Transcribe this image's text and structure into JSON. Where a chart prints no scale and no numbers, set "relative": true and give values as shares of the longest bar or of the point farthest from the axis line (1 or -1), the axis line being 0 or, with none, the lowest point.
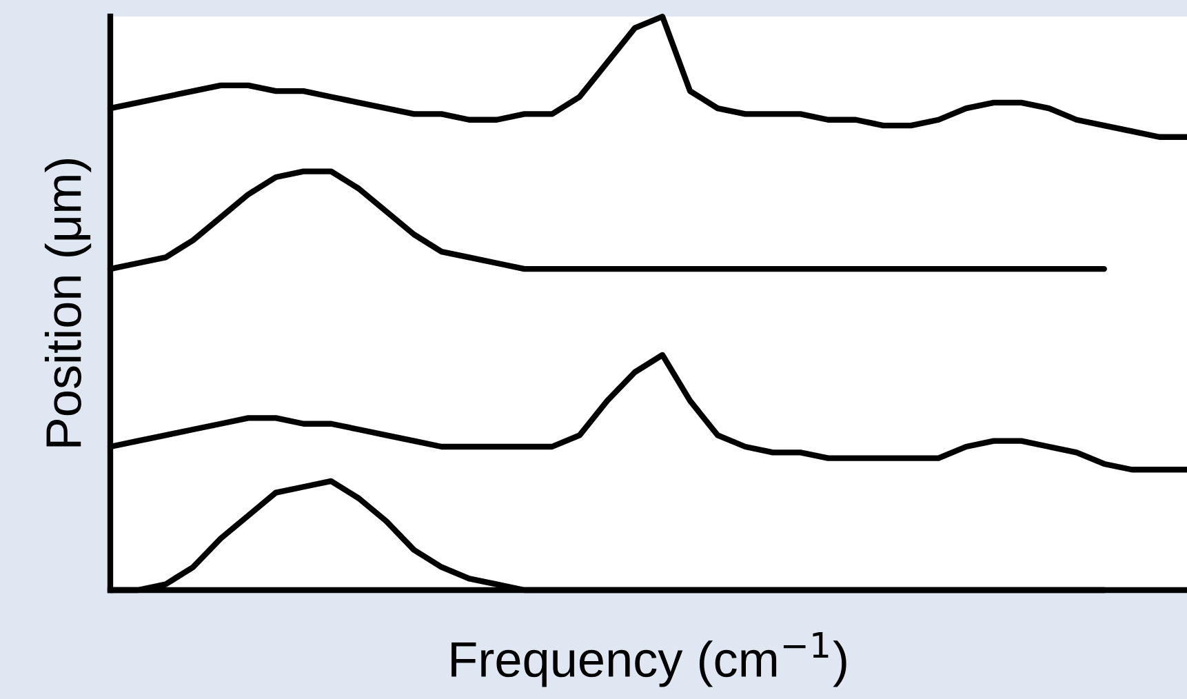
{
  "chart_data": {
    "type": "line",
    "relative": true,
    "xlabel": "Frequency (cm$^{−1}$)",
    "ylabel": "Position (μm)",
    "grid": false,
    "legend": false,
    "tick_labels": false,
    "line_style": "solid",
    "categories": [
      null,
      null,
      null,
      null,
      null,
      null,
      null,
      null,
      null,
      null,
      null,
      null,
      null,
      null,
      null,
      null,
      null,
      null,
      null,
      null,
      null,
      null,
      null,
      null,
      null,
      null,
      null,
      null,
      null,
      null,
      null,
      null,
      null,
      null,
      null,
      null,
      null,
      null,
      null,
      null
    ],
    "series": [
      {
        "color": "#000000",
        "values": [
          0.84,
          0.85,
          0.86,
          0.87,
          0.88,
          0.88,
          0.87,
          0.87,
          0.86,
          0.85,
          0.84,
          0.83,
          0.83,
          0.82,
          0.82,
          0.83,
          0.83,
          0.86,
          0.92,
          0.98,
          1.0,
          0.87,
          0.84,
          0.83,
          0.83,
          0.83,
          0.82,
          0.82,
          0.81,
          0.81,
          0.82,
          0.84,
          0.85,
          0.85,
          0.84,
          0.82,
          0.81,
          0.8,
          0.79,
          0.79
        ]
      },
      {
        "color": "#000000",
        "values": [
          0.56,
          0.57,
          0.58,
          0.61,
          0.65,
          0.69,
          0.72,
          0.73,
          0.73,
          0.7,
          0.66,
          0.62,
          0.59,
          0.58,
          0.57,
          0.56,
          0.56,
          0.56,
          0.56,
          0.56,
          0.56,
          0.56,
          0.56,
          0.56,
          0.56,
          0.56,
          0.56,
          0.56,
          0.56,
          0.56,
          0.56,
          0.56,
          0.56,
          0.56,
          0.56,
          0.56,
          0.56,
          null,
          null,
          null
        ]
      },
      {
        "color": "#000000",
        "values": [
          0.25,
          0.26,
          0.27,
          0.28,
          0.29,
          0.3,
          0.3,
          0.29,
          0.29,
          0.28,
          0.27,
          0.26,
          0.25,
          0.25,
          0.25,
          0.25,
          0.25,
          0.27,
          0.33,
          0.38,
          0.41,
          0.33,
          0.27,
          0.25,
          0.24,
          0.24,
          0.23,
          0.23,
          0.23,
          0.23,
          0.23,
          0.25,
          0.26,
          0.26,
          0.25,
          0.24,
          0.22,
          0.21,
          0.21,
          0.21
        ]
      },
      {
        "color": "#000000",
        "values": [
          0,
          0,
          0.01,
          0.04,
          0.09,
          0.13,
          0.17,
          0.18,
          0.19,
          0.16,
          0.12,
          0.07,
          0.04,
          0.02,
          0.01,
          0,
          0,
          0,
          0,
          0,
          0,
          0,
          0,
          0,
          0,
          0,
          0,
          0,
          0,
          0,
          0,
          0,
          0,
          0,
          0,
          0,
          0,
          null,
          null,
          null
        ]
      }
    ]
  }
}
